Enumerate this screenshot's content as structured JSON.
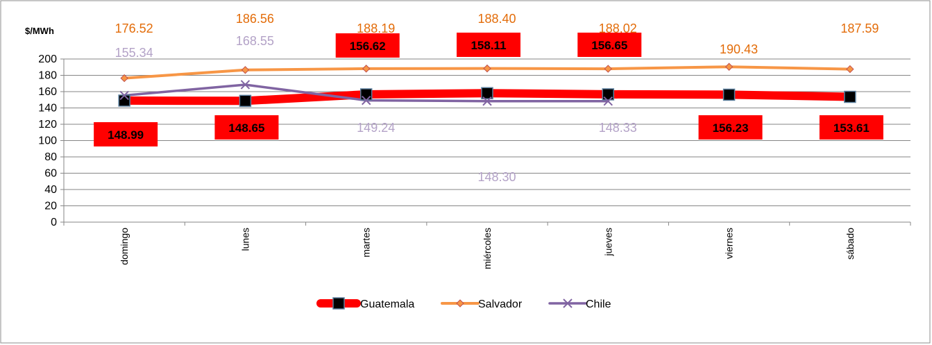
{
  "chart_data": {
    "type": "line",
    "ylabel": "$/MWh",
    "ylim": [
      0,
      200
    ],
    "ytick_step": 20,
    "grid": true,
    "legend_position": "bottom",
    "categories": [
      "domingo",
      "lunes",
      "martes",
      "miércoles",
      "jueves",
      "viernes",
      "sábado"
    ],
    "series": [
      {
        "name": "Guatemala",
        "color": "#ff0000",
        "marker": "square",
        "marker_color": "#000000",
        "values": [
          148.99,
          148.65,
          156.62,
          158.11,
          156.65,
          156.23,
          153.61
        ],
        "labels": [
          "148.99",
          "148.65",
          "156.62",
          "158.11",
          "156.65",
          "156.23",
          "153.61"
        ]
      },
      {
        "name": "Salvador",
        "color": "#f79646",
        "marker": "diamond",
        "label_color": "#e36c09",
        "values": [
          176.52,
          186.56,
          188.19,
          188.4,
          188.02,
          190.43,
          187.59
        ],
        "labels": [
          "176.52",
          "186.56",
          "188.19",
          "188.40",
          "188.02",
          "190.43",
          "187.59"
        ]
      },
      {
        "name": "Chile",
        "color": "#8064a2",
        "marker": "x",
        "label_color": "#b3a2c7",
        "values": [
          155.34,
          168.55,
          149.24,
          148.3,
          148.33,
          null,
          null
        ],
        "labels": [
          "155.34",
          "168.55",
          "149.24",
          "148.30",
          "148.33",
          null,
          null
        ]
      }
    ]
  }
}
